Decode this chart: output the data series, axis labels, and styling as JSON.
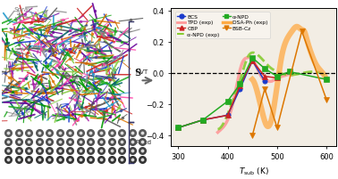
{
  "BCS": {
    "x": [
      300,
      350,
      400,
      425,
      450,
      475
    ],
    "y": [
      -0.35,
      -0.3,
      -0.27,
      -0.1,
      0.08,
      -0.05
    ],
    "color": "#1a3acc",
    "marker": "o",
    "linestyle": "-"
  },
  "CBP": {
    "x": [
      300,
      350,
      400,
      425,
      450,
      475,
      500
    ],
    "y": [
      -0.35,
      -0.3,
      -0.27,
      -0.08,
      0.08,
      -0.02,
      -0.03
    ],
    "color": "#cc2222",
    "marker": "^",
    "linestyle": "-"
  },
  "a-NPD": {
    "x": [
      300,
      350,
      400,
      425,
      450,
      475,
      500,
      525,
      600
    ],
    "y": [
      -0.35,
      -0.3,
      -0.18,
      -0.07,
      0.1,
      0.03,
      -0.02,
      0.01,
      -0.04
    ],
    "color": "#22aa22",
    "marker": "s",
    "linestyle": "-"
  },
  "BSB-Cz": {
    "x": [
      450,
      475,
      500,
      550,
      600
    ],
    "y": [
      -0.4,
      -0.1,
      -0.35,
      0.27,
      -0.17
    ],
    "color": "#dd7700",
    "marker": "v",
    "linestyle": "-"
  },
  "TPD_exp": {
    "x_smooth": [
      380,
      390,
      400,
      410,
      420,
      430,
      440,
      450,
      460,
      470,
      480,
      490,
      500,
      510,
      520,
      530
    ],
    "y_smooth": [
      -0.38,
      -0.35,
      -0.3,
      -0.2,
      -0.05,
      0.07,
      0.1,
      0.09,
      0.03,
      -0.03,
      -0.05,
      -0.05,
      -0.03,
      -0.02,
      -0.01,
      -0.01
    ],
    "color": "#ff9999",
    "linestyle": "-",
    "linewidth": 2.5
  },
  "a-NPD_exp": {
    "x_smooth": [
      380,
      395,
      410,
      425,
      440,
      455,
      470,
      485,
      500,
      520,
      550,
      600
    ],
    "y_smooth": [
      -0.36,
      -0.3,
      -0.18,
      -0.05,
      0.1,
      0.13,
      0.09,
      0.04,
      0.01,
      -0.01,
      0.0,
      -0.02
    ],
    "color": "#88cc33",
    "linestyle": "--",
    "linewidth": 2.0
  },
  "DSA-Ph_exp": {
    "x_smooth": [
      450,
      460,
      470,
      480,
      490,
      500,
      510,
      520,
      530,
      540,
      550,
      555,
      560,
      570,
      580,
      590,
      600
    ],
    "y_smooth": [
      -0.04,
      -0.12,
      -0.25,
      -0.34,
      -0.28,
      -0.08,
      0.12,
      0.22,
      0.27,
      0.3,
      0.28,
      0.27,
      0.22,
      0.12,
      0.05,
      0.01,
      -0.04
    ],
    "color": "#ffaa44",
    "linestyle": "-",
    "linewidth": 4.5
  },
  "xlim": [
    285,
    620
  ],
  "ylim": [
    -0.47,
    0.42
  ],
  "xticks": [
    300,
    400,
    500,
    600
  ],
  "yticks": [
    -0.4,
    -0.2,
    0.0,
    0.2,
    0.4
  ],
  "xlabel": "$T_{\\mathrm{sub}}$ (K)",
  "ylabel": "S",
  "bg_color": "#f2ede4",
  "mol_colors": [
    "#cc2222",
    "#1a3acc",
    "#22aa22",
    "#aa22aa",
    "#555555",
    "#dd7700",
    "#888888",
    "#2299cc",
    "#ff44aa",
    "#88cc44",
    "#cc6600",
    "#334499",
    "#009900",
    "#660099",
    "#006666"
  ]
}
